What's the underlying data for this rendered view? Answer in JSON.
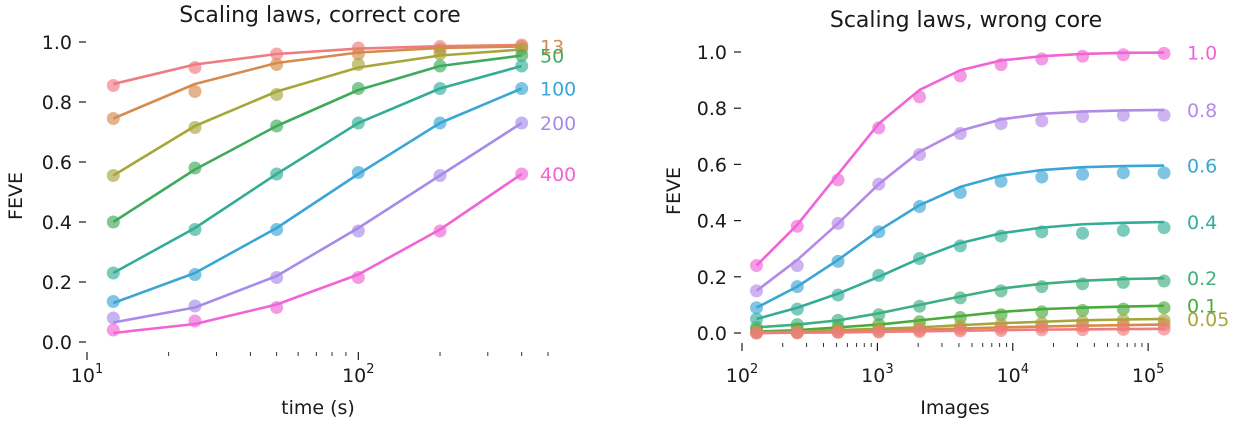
{
  "chart_data": [
    {
      "type": "scatter",
      "title": "Scaling laws, correct core",
      "xlabel": "time (s)",
      "ylabel": "FEVE",
      "xscale": "log",
      "xlim": [
        10,
        500
      ],
      "ylim": [
        0,
        1.0
      ],
      "xticks": [
        {
          "value": 10,
          "base": "10",
          "exp": "1"
        },
        {
          "value": 100,
          "base": "10",
          "exp": "2"
        }
      ],
      "yticks": [
        {
          "value": 0.0,
          "label": "0.0"
        },
        {
          "value": 0.2,
          "label": "0.2"
        },
        {
          "value": 0.4,
          "label": "0.4"
        },
        {
          "value": 0.6,
          "label": "0.6"
        },
        {
          "value": 0.8,
          "label": "0.8"
        },
        {
          "value": 1.0,
          "label": "1.0"
        }
      ],
      "grid": false,
      "x": [
        12.5,
        25,
        50,
        100,
        200,
        400
      ],
      "series": [
        {
          "label": "",
          "color": "#f07b80",
          "points": [
            0.855,
            0.915,
            0.96,
            0.98,
            0.985,
            0.99
          ],
          "fit": [
            0.86,
            0.925,
            0.96,
            0.978,
            0.986,
            0.99
          ]
        },
        {
          "label": "13",
          "color": "#d68b4c",
          "points": [
            0.745,
            0.835,
            0.925,
            0.96,
            0.975,
            0.985
          ],
          "fit": [
            0.745,
            0.86,
            0.93,
            0.965,
            0.98,
            0.985
          ]
        },
        {
          "label": "",
          "color": "#a6a63a",
          "points": [
            0.555,
            0.715,
            0.825,
            0.925,
            0.96,
            0.975
          ],
          "fit": [
            0.555,
            0.72,
            0.835,
            0.915,
            0.955,
            0.975
          ]
        },
        {
          "label": "50",
          "color": "#3faa5c",
          "points": [
            0.4,
            0.58,
            0.72,
            0.845,
            0.92,
            0.955
          ],
          "fit": [
            0.4,
            0.575,
            0.72,
            0.84,
            0.92,
            0.955
          ]
        },
        {
          "label": "",
          "color": "#34ad98",
          "points": [
            0.23,
            0.375,
            0.56,
            0.73,
            0.845,
            0.92
          ],
          "fit": [
            0.23,
            0.38,
            0.56,
            0.73,
            0.845,
            0.92
          ]
        },
        {
          "label": "100",
          "color": "#3aa6d4",
          "points": [
            0.135,
            0.225,
            0.375,
            0.565,
            0.73,
            0.845
          ],
          "fit": [
            0.13,
            0.23,
            0.38,
            0.56,
            0.73,
            0.845
          ]
        },
        {
          "label": "200",
          "color": "#a78bea",
          "points": [
            0.08,
            0.12,
            0.215,
            0.37,
            0.555,
            0.73
          ],
          "fit": [
            0.065,
            0.115,
            0.22,
            0.38,
            0.555,
            0.73
          ]
        },
        {
          "label": "400",
          "color": "#f064d6",
          "points": [
            0.04,
            0.07,
            0.115,
            0.215,
            0.37,
            0.56
          ],
          "fit": [
            0.03,
            0.06,
            0.125,
            0.225,
            0.375,
            0.56
          ]
        }
      ]
    },
    {
      "type": "scatter",
      "title": "Scaling laws, wrong core",
      "xlabel": "Images",
      "ylabel": "FEVE",
      "xscale": "log",
      "xlim": [
        100,
        150000
      ],
      "ylim": [
        0,
        1.0
      ],
      "xticks": [
        {
          "value": 100,
          "base": "10",
          "exp": "2"
        },
        {
          "value": 1000,
          "base": "10",
          "exp": "3"
        },
        {
          "value": 10000,
          "base": "10",
          "exp": "4"
        },
        {
          "value": 100000,
          "base": "10",
          "exp": "5"
        }
      ],
      "yticks": [
        {
          "value": 0.0,
          "label": "0.0"
        },
        {
          "value": 0.2,
          "label": "0.2"
        },
        {
          "value": 0.4,
          "label": "0.4"
        },
        {
          "value": 0.6,
          "label": "0.6"
        },
        {
          "value": 0.8,
          "label": "0.8"
        },
        {
          "value": 1.0,
          "label": "1.0"
        }
      ],
      "grid": false,
      "x": [
        128,
        256,
        512,
        1024,
        2048,
        4096,
        8192,
        16384,
        32768,
        65536,
        131072
      ],
      "series": [
        {
          "label": "1.0",
          "color": "#f064d6",
          "points": [
            0.24,
            0.38,
            0.545,
            0.73,
            0.84,
            0.915,
            0.955,
            0.975,
            0.985,
            0.99,
            0.995
          ],
          "fit": [
            0.24,
            0.385,
            0.565,
            0.745,
            0.865,
            0.935,
            0.97,
            0.985,
            0.993,
            0.997,
            0.998
          ]
        },
        {
          "label": "0.8",
          "color": "#b48ae8",
          "points": [
            0.15,
            0.24,
            0.39,
            0.53,
            0.635,
            0.71,
            0.745,
            0.755,
            0.77,
            0.775,
            0.775
          ],
          "fit": [
            0.15,
            0.26,
            0.39,
            0.53,
            0.645,
            0.72,
            0.76,
            0.78,
            0.788,
            0.792,
            0.794
          ]
        },
        {
          "label": "0.6",
          "color": "#3aa6d4",
          "points": [
            0.09,
            0.165,
            0.255,
            0.36,
            0.45,
            0.5,
            0.54,
            0.555,
            0.565,
            0.57,
            0.57
          ],
          "fit": [
            0.09,
            0.165,
            0.26,
            0.365,
            0.455,
            0.52,
            0.56,
            0.58,
            0.59,
            0.594,
            0.596
          ]
        },
        {
          "label": "0.4",
          "color": "#34ad98",
          "points": [
            0.05,
            0.085,
            0.135,
            0.205,
            0.265,
            0.31,
            0.345,
            0.36,
            0.355,
            0.365,
            0.375
          ],
          "fit": [
            0.05,
            0.09,
            0.14,
            0.2,
            0.265,
            0.32,
            0.355,
            0.375,
            0.387,
            0.392,
            0.395
          ]
        },
        {
          "label": "0.2",
          "color": "#3fae80",
          "points": [
            0.02,
            0.03,
            0.045,
            0.065,
            0.095,
            0.125,
            0.15,
            0.165,
            0.175,
            0.18,
            0.185
          ],
          "fit": [
            0.02,
            0.03,
            0.045,
            0.07,
            0.1,
            0.13,
            0.158,
            0.175,
            0.186,
            0.192,
            0.195
          ]
        },
        {
          "label": "0.1",
          "color": "#4aab3c",
          "points": [
            0.01,
            0.015,
            0.02,
            0.03,
            0.04,
            0.055,
            0.065,
            0.075,
            0.08,
            0.085,
            0.09
          ],
          "fit": [
            0.005,
            0.01,
            0.02,
            0.03,
            0.045,
            0.06,
            0.075,
            0.085,
            0.09,
            0.094,
            0.097
          ]
        },
        {
          "label": "0.05",
          "color": "#a6a63a",
          "points": [
            0.005,
            0.005,
            0.01,
            0.015,
            0.02,
            0.025,
            0.03,
            0.035,
            0.04,
            0.045,
            0.045
          ],
          "fit": [
            0.002,
            0.005,
            0.01,
            0.015,
            0.02,
            0.028,
            0.035,
            0.04,
            0.045,
            0.048,
            0.05
          ]
        },
        {
          "label": "",
          "color": "#d68b4c",
          "points": [
            0.0,
            0.002,
            0.004,
            0.006,
            0.01,
            0.014,
            0.018,
            0.022,
            0.025,
            0.027,
            0.03
          ],
          "fit": [
            0.0,
            0.002,
            0.005,
            0.008,
            0.012,
            0.016,
            0.02,
            0.023,
            0.026,
            0.028,
            0.03
          ]
        },
        {
          "label": "",
          "color": "#f07b80",
          "points": [
            0.0,
            0.0,
            0.002,
            0.003,
            0.005,
            0.007,
            0.009,
            0.011,
            0.012,
            0.013,
            0.014
          ],
          "fit": [
            0.0,
            0.001,
            0.002,
            0.004,
            0.006,
            0.008,
            0.01,
            0.012,
            0.013,
            0.014,
            0.015
          ]
        }
      ]
    }
  ]
}
